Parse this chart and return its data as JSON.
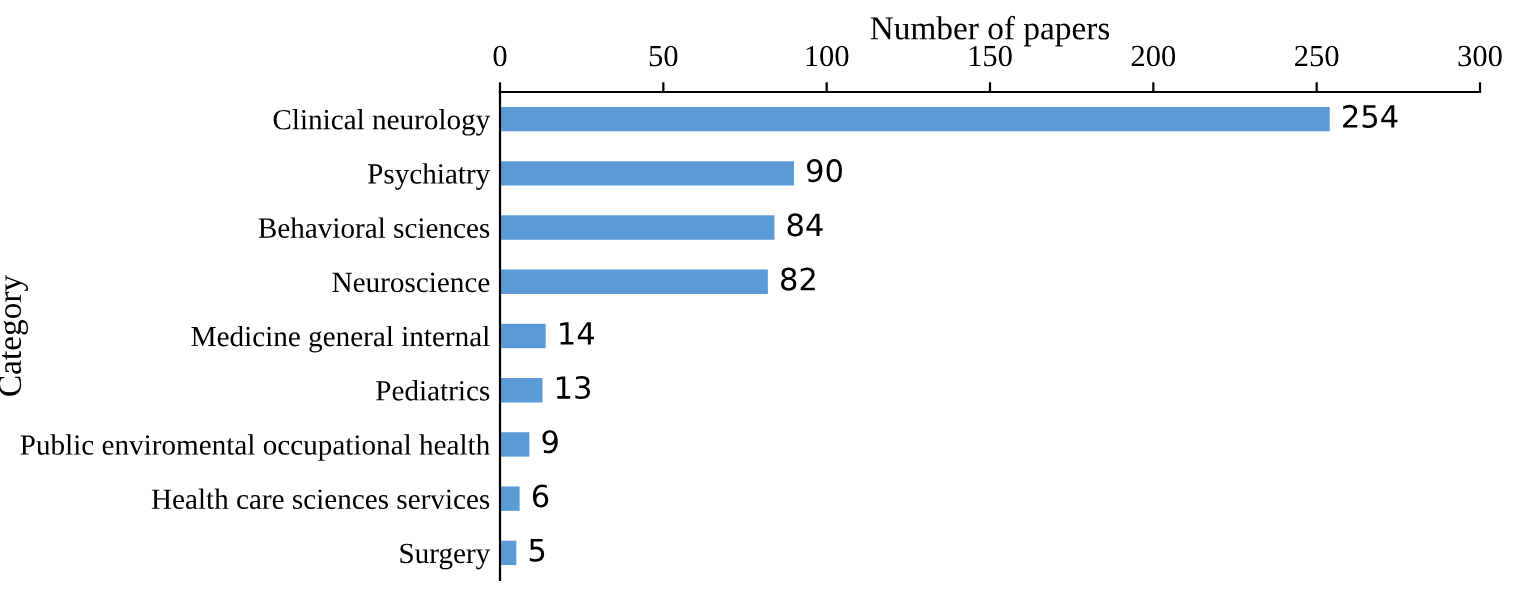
{
  "chart_data": {
    "type": "bar",
    "orientation": "horizontal",
    "xlabel": "Number of papers",
    "ylabel": "Category",
    "categories": [
      "Clinical neurology",
      "Psychiatry",
      "Behavioral sciences",
      "Neuroscience",
      "Medicine general internal",
      "Pediatrics",
      "Public enviromental occupational health",
      "Health care sciences services",
      "Surgery"
    ],
    "values": [
      254,
      90,
      84,
      82,
      14,
      13,
      9,
      6,
      5
    ],
    "color": "#5b9bd5",
    "xlim": [
      0,
      300
    ],
    "xticks": [
      0,
      50,
      100,
      150,
      200,
      250,
      300
    ],
    "data_labels": true,
    "grid": false,
    "legend": false
  }
}
